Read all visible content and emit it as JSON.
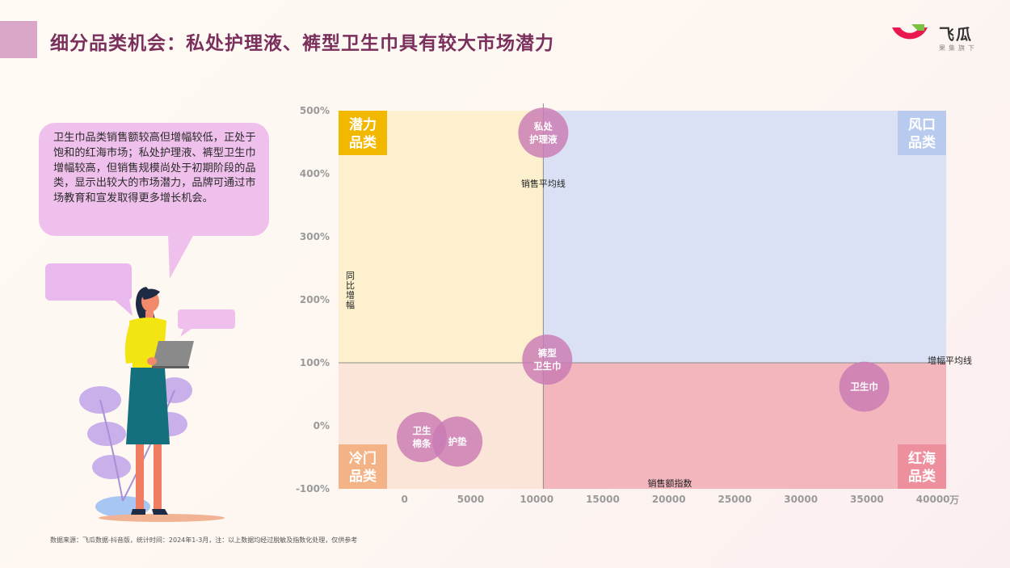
{
  "header": {
    "title": "细分品类机会：私处护理液、裤型卫生巾具有较大市场潜力",
    "logo_name": "飞瓜",
    "logo_sub": "果集旗下"
  },
  "callout": {
    "text": "卫生巾品类销售额较高但增幅较低，正处于饱和的红海市场；私处护理液、裤型卫生巾增幅较高，但销售规模尚处于初期阶段的品类，显示出较大的市场潜力，品牌可通过市场教育和宣发取得更多增长机会。"
  },
  "footnote": "数据来源：飞瓜数据-抖音版，统计时间：2024年1-3月，注：以上数据均经过脱敏及指数化处理，仅供参考",
  "colors": {
    "title": "#7a2f5c",
    "bubble": "#c97ab3",
    "potential": "#fdf0cf",
    "potential_label": "#f2b800",
    "wind": "#dae1f5",
    "wind_label": "#b8cbee",
    "cold": "#fbe5d8",
    "cold_label": "#f3b387",
    "redsea": "#f3b6bd",
    "redsea_label": "#ee8f9e"
  },
  "chart_data": {
    "type": "scatter",
    "xlabel": "销售额指数",
    "ylabel": "同比增幅",
    "x_unit": "万",
    "xlim": [
      -5000,
      41000
    ],
    "ylim": [
      -100,
      500
    ],
    "x_ticks": [
      0,
      5000,
      10000,
      15000,
      20000,
      25000,
      30000,
      35000,
      40000
    ],
    "y_ticks": [
      {
        "value": 500,
        "label": "500%"
      },
      {
        "value": 400,
        "label": "400%"
      },
      {
        "value": 300,
        "label": "300%"
      },
      {
        "value": 200,
        "label": "200%"
      },
      {
        "value": 100,
        "label": "100%"
      },
      {
        "value": 0,
        "label": "0%"
      },
      {
        "value": -100,
        "label": "-100%"
      }
    ],
    "sales_avg": 10500,
    "growth_avg": 100,
    "sales_avg_label": "销售平均线",
    "growth_avg_label": "增幅平均线",
    "quadrants": [
      {
        "name": "潜力品类",
        "line1": "潜力",
        "line2": "品类"
      },
      {
        "name": "风口品类",
        "line1": "风口",
        "line2": "品类"
      },
      {
        "name": "冷门品类",
        "line1": "冷门",
        "line2": "品类"
      },
      {
        "name": "红海品类",
        "line1": "红海",
        "line2": "品类"
      }
    ],
    "points": [
      {
        "name": "私处护理液",
        "line1": "私处",
        "line2": "护理液",
        "x": 10500,
        "y": 465
      },
      {
        "name": "裤型卫生巾",
        "line1": "裤型",
        "line2": "卫生巾",
        "x": 10800,
        "y": 105
      },
      {
        "name": "卫生巾",
        "line1": "卫生巾",
        "line2": "",
        "x": 34800,
        "y": 62
      },
      {
        "name": "卫生棉条",
        "line1": "卫生",
        "line2": "棉条",
        "x": 1300,
        "y": -18
      },
      {
        "name": "护垫",
        "line1": "护垫",
        "line2": "",
        "x": 4000,
        "y": -25
      }
    ]
  }
}
